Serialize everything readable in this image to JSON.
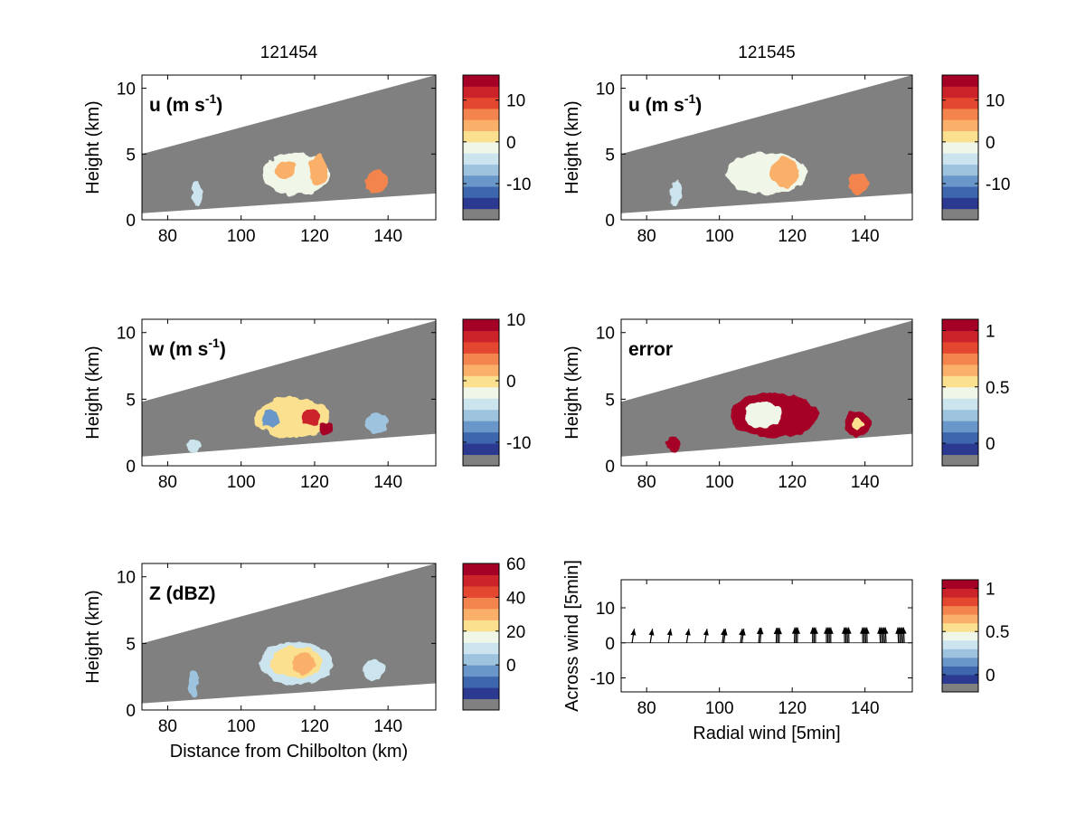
{
  "colors": {
    "background_gray": "#808080",
    "colormap": [
      "#808080",
      "#2b3990",
      "#3e66ad",
      "#6a97c9",
      "#9dc3de",
      "#cbe4ee",
      "#f0f7e8",
      "#fbe08f",
      "#fbb06a",
      "#f4844d",
      "#e3472f",
      "#cc2229",
      "#a50026"
    ]
  },
  "chart_data": [
    {
      "id": "u1",
      "type": "heatmap",
      "title": "121454",
      "annotation": "u (m s",
      "annotation_sup": "-1",
      "annotation_tail": ")",
      "ylabel": "Height (km)",
      "xlabel": "",
      "xlim": [
        73,
        153
      ],
      "ylim": [
        0,
        11
      ],
      "xticks": [
        80,
        100,
        120,
        140
      ],
      "yticks": [
        0,
        5,
        10
      ],
      "beam": {
        "bottom": [
          [
            73,
            0.5
          ],
          [
            153,
            2.0
          ]
        ],
        "top": [
          [
            73,
            5.0
          ],
          [
            153,
            11.0
          ]
        ]
      },
      "colorbar": {
        "ticks": [
          "10",
          "0",
          "-10"
        ],
        "tick_levels": [
          10,
          0,
          -10
        ],
        "range": [
          -16,
          16
        ]
      },
      "echoes": [
        {
          "x": 88,
          "y": 2.0,
          "w": 3,
          "h": 2.0,
          "v": -3
        },
        {
          "x": 115,
          "y": 3.5,
          "w": 18,
          "h": 3.2,
          "v": -1
        },
        {
          "x": 112,
          "y": 3.8,
          "w": 6,
          "h": 1.2,
          "v": 3
        },
        {
          "x": 121,
          "y": 3.8,
          "w": 5,
          "h": 2.4,
          "v": 4
        },
        {
          "x": 137,
          "y": 2.9,
          "w": 6,
          "h": 1.8,
          "v": 6
        }
      ]
    },
    {
      "id": "u2",
      "type": "heatmap",
      "title": "121545",
      "annotation": "u (m s",
      "annotation_sup": "-1",
      "annotation_tail": ")",
      "ylabel": "Height (km)",
      "xlabel": "",
      "xlim": [
        73,
        153
      ],
      "ylim": [
        0,
        11
      ],
      "xticks": [
        80,
        100,
        120,
        140
      ],
      "yticks": [
        0,
        5,
        10
      ],
      "beam": {
        "bottom": [
          [
            73,
            0.5
          ],
          [
            153,
            2.0
          ]
        ],
        "top": [
          [
            73,
            5.0
          ],
          [
            153,
            11.0
          ]
        ]
      },
      "colorbar": {
        "ticks": [
          "10",
          "0",
          "-10"
        ],
        "tick_levels": [
          10,
          0,
          -10
        ],
        "range": [
          -16,
          16
        ]
      },
      "echoes": [
        {
          "x": 88,
          "y": 2.0,
          "w": 3,
          "h": 2.0,
          "v": -3
        },
        {
          "x": 113,
          "y": 3.5,
          "w": 22,
          "h": 3.2,
          "v": -1
        },
        {
          "x": 118,
          "y": 3.6,
          "w": 8,
          "h": 2.2,
          "v": 3
        },
        {
          "x": 138,
          "y": 2.8,
          "w": 6,
          "h": 1.6,
          "v": 6
        }
      ]
    },
    {
      "id": "w",
      "type": "heatmap",
      "title": "",
      "annotation": "w (m s",
      "annotation_sup": "-1",
      "annotation_tail": ")",
      "ylabel": "Height (km)",
      "xlabel": "",
      "xlim": [
        73,
        153
      ],
      "ylim": [
        0,
        11
      ],
      "xticks": [
        80,
        100,
        120,
        140
      ],
      "yticks": [
        0,
        5,
        10
      ],
      "beam": {
        "bottom": [
          [
            73,
            0.7
          ],
          [
            153,
            2.4
          ]
        ],
        "top": [
          [
            73,
            4.8
          ],
          [
            153,
            10.9
          ]
        ]
      },
      "colorbar": {
        "ticks": [
          "10",
          "0",
          "-10"
        ],
        "tick_levels": [
          10,
          0,
          -10
        ],
        "range": [
          -12,
          10
        ]
      },
      "echoes": [
        {
          "x": 87,
          "y": 1.5,
          "w": 4,
          "h": 1.0,
          "v": -4
        },
        {
          "x": 114,
          "y": 3.6,
          "w": 20,
          "h": 3.0,
          "v": 0
        },
        {
          "x": 108,
          "y": 3.5,
          "w": 5,
          "h": 1.4,
          "v": -7
        },
        {
          "x": 119,
          "y": 3.6,
          "w": 5,
          "h": 1.4,
          "v": 8
        },
        {
          "x": 123,
          "y": 2.8,
          "w": 4,
          "h": 1.0,
          "v": 9
        },
        {
          "x": 137,
          "y": 3.2,
          "w": 6,
          "h": 1.6,
          "v": -5
        }
      ]
    },
    {
      "id": "err",
      "type": "heatmap",
      "title": "",
      "annotation": "error",
      "annotation_sup": "",
      "annotation_tail": "",
      "ylabel": "Height (km)",
      "xlabel": "",
      "xlim": [
        73,
        153
      ],
      "ylim": [
        0,
        11
      ],
      "xticks": [
        80,
        100,
        120,
        140
      ],
      "yticks": [
        0,
        5,
        10
      ],
      "beam": {
        "bottom": [
          [
            73,
            0.7
          ],
          [
            153,
            2.4
          ]
        ],
        "top": [
          [
            73,
            4.8
          ],
          [
            153,
            10.9
          ]
        ]
      },
      "colorbar": {
        "ticks": [
          "1",
          "0.5",
          "0"
        ],
        "tick_levels": [
          1,
          0.5,
          0
        ],
        "range": [
          -0.1,
          1.1
        ]
      },
      "echoes": [
        {
          "x": 87,
          "y": 1.6,
          "w": 4,
          "h": 1.2,
          "v": 1.05
        },
        {
          "x": 115,
          "y": 3.8,
          "w": 24,
          "h": 3.4,
          "v": 1.05
        },
        {
          "x": 112,
          "y": 3.8,
          "w": 10,
          "h": 2.0,
          "v": 0.4
        },
        {
          "x": 138,
          "y": 3.2,
          "w": 7,
          "h": 1.8,
          "v": 1.05
        },
        {
          "x": 138,
          "y": 3.1,
          "w": 3,
          "h": 0.8,
          "v": 0.55
        }
      ]
    },
    {
      "id": "z",
      "type": "heatmap",
      "title": "",
      "annotation": "Z (dBZ)",
      "annotation_sup": "",
      "annotation_tail": "",
      "ylabel": "Height (km)",
      "xlabel": "Distance from Chilbolton (km)",
      "xlim": [
        73,
        153
      ],
      "ylim": [
        0,
        11
      ],
      "xticks": [
        80,
        100,
        120,
        140
      ],
      "yticks": [
        0,
        5,
        10
      ],
      "beam": {
        "bottom": [
          [
            73,
            0.5
          ],
          [
            153,
            2.0
          ]
        ],
        "top": [
          [
            73,
            5.0
          ],
          [
            153,
            11.0
          ]
        ]
      },
      "colorbar": {
        "ticks": [
          "60",
          "40",
          "20",
          "0"
        ],
        "tick_levels": [
          60,
          40,
          20,
          0
        ],
        "range": [
          -20,
          60
        ]
      },
      "echoes": [
        {
          "x": 87,
          "y": 2.0,
          "w": 3,
          "h": 2.0,
          "v": 5
        },
        {
          "x": 115,
          "y": 3.5,
          "w": 20,
          "h": 3.2,
          "v": 8
        },
        {
          "x": 115,
          "y": 3.6,
          "w": 14,
          "h": 2.4,
          "v": 20
        },
        {
          "x": 117,
          "y": 3.5,
          "w": 6,
          "h": 1.6,
          "v": 30
        },
        {
          "x": 136,
          "y": 3.0,
          "w": 6,
          "h": 1.6,
          "v": 12
        }
      ]
    },
    {
      "id": "vec",
      "type": "scatter",
      "title": "",
      "ylabel": "Across wind [5min]",
      "xlabel": "Radial wind [5min]",
      "xlim": [
        73,
        153
      ],
      "ylim": [
        -14,
        18
      ],
      "xticks": [
        80,
        100,
        120,
        140
      ],
      "yticks": [
        10,
        0,
        -10
      ],
      "colorbar": {
        "ticks": [
          "1",
          "0.5",
          "0"
        ],
        "tick_levels": [
          1,
          0.5,
          0
        ],
        "range": [
          -0.1,
          1.1
        ]
      },
      "arrows": [
        {
          "x": 76,
          "dx": 0.6,
          "dy": 4.0,
          "n": 1
        },
        {
          "x": 81,
          "dx": 0.6,
          "dy": 4.0,
          "n": 1
        },
        {
          "x": 86,
          "dx": 0.6,
          "dy": 4.0,
          "n": 1
        },
        {
          "x": 91,
          "dx": 0.6,
          "dy": 4.0,
          "n": 1
        },
        {
          "x": 96,
          "dx": 0.6,
          "dy": 4.0,
          "n": 1
        },
        {
          "x": 101,
          "dx": 0.5,
          "dy": 4.0,
          "n": 2
        },
        {
          "x": 106,
          "dx": 0.5,
          "dy": 4.0,
          "n": 2
        },
        {
          "x": 111,
          "dx": 0.3,
          "dy": 4.3,
          "n": 2
        },
        {
          "x": 116,
          "dx": 0.1,
          "dy": 4.3,
          "n": 3
        },
        {
          "x": 121,
          "dx": 0.1,
          "dy": 4.4,
          "n": 3
        },
        {
          "x": 126,
          "dx": 0.0,
          "dy": 4.4,
          "n": 3
        },
        {
          "x": 130,
          "dx": 0.0,
          "dy": 4.4,
          "n": 4
        },
        {
          "x": 135,
          "dx": -0.1,
          "dy": 4.4,
          "n": 4
        },
        {
          "x": 140,
          "dx": -0.1,
          "dy": 4.4,
          "n": 4
        },
        {
          "x": 145,
          "dx": -0.2,
          "dy": 4.4,
          "n": 5
        },
        {
          "x": 150,
          "dx": -0.2,
          "dy": 4.4,
          "n": 5
        }
      ]
    }
  ]
}
